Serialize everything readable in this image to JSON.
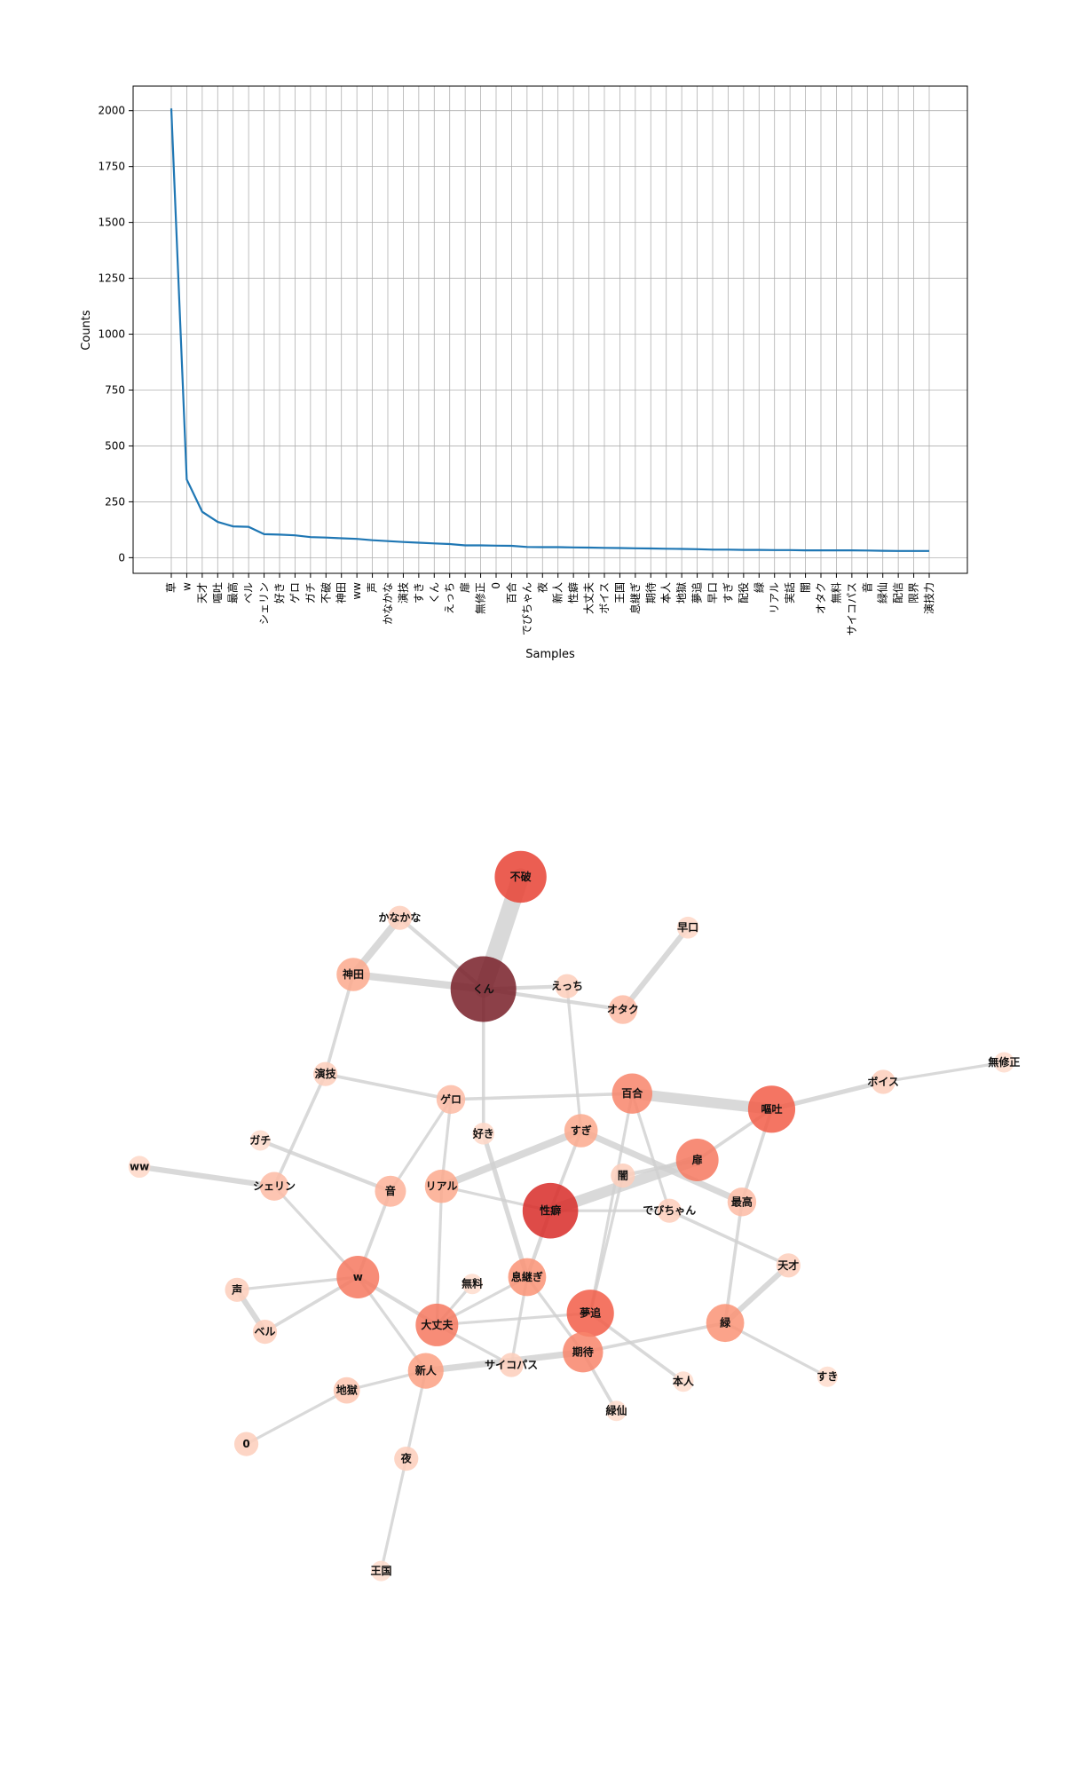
{
  "chart_data": [
    {
      "type": "line",
      "xlabel": "Samples",
      "ylabel": "Counts",
      "ylim": [
        -70,
        2110
      ],
      "yticks": [
        0,
        250,
        500,
        750,
        1000,
        1250,
        1500,
        1750,
        2000
      ],
      "grid": true,
      "line_color": "#1f77b4",
      "categories": [
        "草",
        "w",
        "天才",
        "嘔吐",
        "最高",
        "ベル",
        "シェリン",
        "好き",
        "ゲロ",
        "ガチ",
        "不破",
        "神田",
        "ww",
        "声",
        "かなかな",
        "演技",
        "すき",
        "くん",
        "えっち",
        "扉",
        "無修正",
        "0",
        "百合",
        "でびちゃん",
        "夜",
        "新人",
        "性癖",
        "大丈夫",
        "ボイス",
        "王国",
        "息継ぎ",
        "期待",
        "本人",
        "地獄",
        "夢追",
        "早口",
        "すぎ",
        "配役",
        "緑",
        "リアル",
        "実話",
        "闇",
        "オタク",
        "無料",
        "サイコパス",
        "音",
        "緑仙",
        "配信",
        "限界",
        "演技力"
      ],
      "values": [
        2010,
        350,
        205,
        160,
        140,
        138,
        105,
        103,
        100,
        92,
        90,
        87,
        84,
        78,
        74,
        70,
        67,
        64,
        61,
        55,
        55,
        54,
        53,
        48,
        47,
        47,
        46,
        45,
        44,
        43,
        42,
        41,
        40,
        39,
        38,
        36,
        36,
        35,
        35,
        34,
        34,
        33,
        33,
        33,
        33,
        32,
        31,
        30,
        30,
        30
      ]
    },
    {
      "type": "network",
      "nodes": [
        {
          "id": "不破",
          "x": 0.58,
          "y": 0.04,
          "weight": 0.7
        },
        {
          "id": "かなかな",
          "x": 0.45,
          "y": 0.082,
          "weight": 0.1
        },
        {
          "id": "早口",
          "x": 0.76,
          "y": 0.092,
          "weight": 0.05
        },
        {
          "id": "神田",
          "x": 0.4,
          "y": 0.14,
          "weight": 0.3
        },
        {
          "id": "くん",
          "x": 0.54,
          "y": 0.155,
          "weight": 1.0
        },
        {
          "id": "えっち",
          "x": 0.63,
          "y": 0.152,
          "weight": 0.1
        },
        {
          "id": "オタク",
          "x": 0.69,
          "y": 0.176,
          "weight": 0.2
        },
        {
          "id": "無修正",
          "x": 1.1,
          "y": 0.23,
          "weight": 0.02
        },
        {
          "id": "演技",
          "x": 0.37,
          "y": 0.242,
          "weight": 0.1
        },
        {
          "id": "ボイス",
          "x": 0.97,
          "y": 0.25,
          "weight": 0.1
        },
        {
          "id": "百合",
          "x": 0.7,
          "y": 0.262,
          "weight": 0.45
        },
        {
          "id": "嘔吐",
          "x": 0.85,
          "y": 0.278,
          "weight": 0.6
        },
        {
          "id": "ゲロ",
          "x": 0.505,
          "y": 0.268,
          "weight": 0.2
        },
        {
          "id": "好き",
          "x": 0.54,
          "y": 0.303,
          "weight": 0.05
        },
        {
          "id": "すぎ",
          "x": 0.645,
          "y": 0.3,
          "weight": 0.3
        },
        {
          "id": "ガチ",
          "x": 0.3,
          "y": 0.31,
          "weight": 0.02
        },
        {
          "id": "ww",
          "x": 0.17,
          "y": 0.337,
          "weight": 0.05
        },
        {
          "id": "扉",
          "x": 0.77,
          "y": 0.33,
          "weight": 0.5
        },
        {
          "id": "闇",
          "x": 0.69,
          "y": 0.346,
          "weight": 0.1
        },
        {
          "id": "シェリン",
          "x": 0.315,
          "y": 0.357,
          "weight": 0.2
        },
        {
          "id": "音",
          "x": 0.44,
          "y": 0.362,
          "weight": 0.25
        },
        {
          "id": "リアル",
          "x": 0.495,
          "y": 0.357,
          "weight": 0.3
        },
        {
          "id": "最高",
          "x": 0.818,
          "y": 0.373,
          "weight": 0.2
        },
        {
          "id": "性癖",
          "x": 0.612,
          "y": 0.382,
          "weight": 0.78
        },
        {
          "id": "でびちゃん",
          "x": 0.74,
          "y": 0.382,
          "weight": 0.1
        },
        {
          "id": "天才",
          "x": 0.868,
          "y": 0.438,
          "weight": 0.1
        },
        {
          "id": "w",
          "x": 0.405,
          "y": 0.45,
          "weight": 0.5
        },
        {
          "id": "息継ぎ",
          "x": 0.587,
          "y": 0.45,
          "weight": 0.4
        },
        {
          "id": "無料",
          "x": 0.528,
          "y": 0.457,
          "weight": 0.02
        },
        {
          "id": "声",
          "x": 0.275,
          "y": 0.463,
          "weight": 0.1
        },
        {
          "id": "夢追",
          "x": 0.655,
          "y": 0.487,
          "weight": 0.6
        },
        {
          "id": "緑",
          "x": 0.8,
          "y": 0.497,
          "weight": 0.4
        },
        {
          "id": "大丈夫",
          "x": 0.49,
          "y": 0.499,
          "weight": 0.5
        },
        {
          "id": "ベル",
          "x": 0.305,
          "y": 0.506,
          "weight": 0.1
        },
        {
          "id": "期待",
          "x": 0.647,
          "y": 0.527,
          "weight": 0.45
        },
        {
          "id": "サイコパス",
          "x": 0.57,
          "y": 0.54,
          "weight": 0.1
        },
        {
          "id": "新人",
          "x": 0.478,
          "y": 0.546,
          "weight": 0.35
        },
        {
          "id": "本人",
          "x": 0.755,
          "y": 0.557,
          "weight": 0.02
        },
        {
          "id": "すき",
          "x": 0.91,
          "y": 0.552,
          "weight": 0.02
        },
        {
          "id": "地獄",
          "x": 0.393,
          "y": 0.566,
          "weight": 0.15
        },
        {
          "id": "緑仙",
          "x": 0.683,
          "y": 0.587,
          "weight": 0.02
        },
        {
          "id": "0",
          "x": 0.285,
          "y": 0.621,
          "weight": 0.1
        },
        {
          "id": "夜",
          "x": 0.457,
          "y": 0.636,
          "weight": 0.1
        },
        {
          "id": "王国",
          "x": 0.43,
          "y": 0.751,
          "weight": 0.02
        }
      ],
      "edges": [
        {
          "source": "くん",
          "target": "不破",
          "weight": 0.9
        },
        {
          "source": "くん",
          "target": "神田",
          "weight": 0.35
        },
        {
          "source": "くん",
          "target": "かなかな",
          "weight": 0.15
        },
        {
          "source": "くん",
          "target": "えっち",
          "weight": 0.15
        },
        {
          "source": "くん",
          "target": "オタク",
          "weight": 0.15
        },
        {
          "source": "くん",
          "target": "好き",
          "weight": 0.12
        },
        {
          "source": "神田",
          "target": "かなかな",
          "weight": 0.35
        },
        {
          "source": "神田",
          "target": "演技",
          "weight": 0.12
        },
        {
          "source": "演技",
          "target": "ゲロ",
          "weight": 0.12
        },
        {
          "source": "演技",
          "target": "シェリン",
          "weight": 0.12
        },
        {
          "source": "早口",
          "target": "オタク",
          "weight": 0.25
        },
        {
          "source": "百合",
          "target": "嘔吐",
          "weight": 0.55
        },
        {
          "source": "百合",
          "target": "ゲロ",
          "weight": 0.12
        },
        {
          "source": "百合",
          "target": "でびちゃん",
          "weight": 0.1
        },
        {
          "source": "嘔吐",
          "target": "ボイス",
          "weight": 0.2
        },
        {
          "source": "ボイス",
          "target": "無修正",
          "weight": 0.1
        },
        {
          "source": "嘔吐",
          "target": "最高",
          "weight": 0.12
        },
        {
          "source": "嘔吐",
          "target": "扉",
          "weight": 0.12
        },
        {
          "source": "扉",
          "target": "性癖",
          "weight": 0.55
        },
        {
          "source": "扉",
          "target": "闇",
          "weight": 0.15
        },
        {
          "source": "すぎ",
          "target": "リアル",
          "weight": 0.35
        },
        {
          "source": "すぎ",
          "target": "最高",
          "weight": 0.3
        },
        {
          "source": "すぎ",
          "target": "えっち",
          "weight": 0.1
        },
        {
          "source": "すぎ",
          "target": "性癖",
          "weight": 0.12
        },
        {
          "source": "闇",
          "target": "夢追",
          "weight": 0.1
        },
        {
          "source": "最高",
          "target": "緑",
          "weight": 0.12
        },
        {
          "source": "天才",
          "target": "緑",
          "weight": 0.25
        },
        {
          "source": "天才",
          "target": "でびちゃん",
          "weight": 0.12
        },
        {
          "source": "性癖",
          "target": "息継ぎ",
          "weight": 0.15
        },
        {
          "source": "性癖",
          "target": "でびちゃん",
          "weight": 0.1
        },
        {
          "source": "好き",
          "target": "息継ぎ",
          "weight": 0.2
        },
        {
          "source": "ガチ",
          "target": "音",
          "weight": 0.15
        },
        {
          "source": "ww",
          "target": "シェリン",
          "weight": 0.25
        },
        {
          "source": "シェリン",
          "target": "w",
          "weight": 0.1
        },
        {
          "source": "音",
          "target": "w",
          "weight": 0.12
        },
        {
          "source": "音",
          "target": "ゲロ",
          "weight": 0.1
        },
        {
          "source": "リアル",
          "target": "ゲロ",
          "weight": 0.1
        },
        {
          "source": "リアル",
          "target": "性癖",
          "weight": 0.1
        },
        {
          "source": "リアル",
          "target": "大丈夫",
          "weight": 0.1
        },
        {
          "source": "w",
          "target": "声",
          "weight": 0.1
        },
        {
          "source": "w",
          "target": "ベル",
          "weight": 0.12
        },
        {
          "source": "w",
          "target": "大丈夫",
          "weight": 0.15
        },
        {
          "source": "w",
          "target": "新人",
          "weight": 0.1
        },
        {
          "source": "声",
          "target": "ベル",
          "weight": 0.25
        },
        {
          "source": "無料",
          "target": "大丈夫",
          "weight": 0.1
        },
        {
          "source": "息継ぎ",
          "target": "大丈夫",
          "weight": 0.1
        },
        {
          "source": "息継ぎ",
          "target": "サイコパス",
          "weight": 0.1
        },
        {
          "source": "息継ぎ",
          "target": "期待",
          "weight": 0.1
        },
        {
          "source": "大丈夫",
          "target": "夢追",
          "weight": 0.1
        },
        {
          "source": "大丈夫",
          "target": "サイコパス",
          "weight": 0.1
        },
        {
          "source": "夢追",
          "target": "本人",
          "weight": 0.12
        },
        {
          "source": "期待",
          "target": "新人",
          "weight": 0.3
        },
        {
          "source": "期待",
          "target": "緑仙",
          "weight": 0.12
        },
        {
          "source": "期待",
          "target": "緑",
          "weight": 0.12
        },
        {
          "source": "緑",
          "target": "すき",
          "weight": 0.1
        },
        {
          "source": "新人",
          "target": "夜",
          "weight": 0.1
        },
        {
          "source": "新人",
          "target": "地獄",
          "weight": 0.1
        },
        {
          "source": "地獄",
          "target": "0",
          "weight": 0.1
        },
        {
          "source": "夜",
          "target": "王国",
          "weight": 0.1
        },
        {
          "source": "夢追",
          "target": "百合",
          "weight": 0.1
        }
      ]
    }
  ]
}
